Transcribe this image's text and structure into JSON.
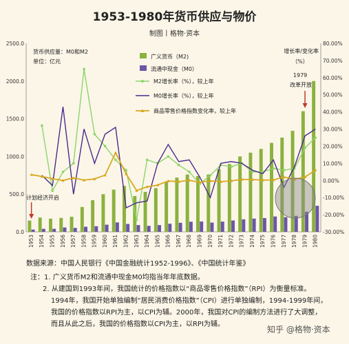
{
  "title": "1953-1980年货币供应与物价",
  "subtitle": "制图丨格物·资本",
  "chart_data": {
    "type": "bar",
    "categories": [
      "1953",
      "1954",
      "1955",
      "1956",
      "1957",
      "1958",
      "1959",
      "1960",
      "1961",
      "1962",
      "1963",
      "1964",
      "1965",
      "1966",
      "1967",
      "1968",
      "1969",
      "1970",
      "1971",
      "1972",
      "1973",
      "1974",
      "1975",
      "1976",
      "1977",
      "1978",
      "1979",
      "1980"
    ],
    "y_left": {
      "range": [
        0,
        2500
      ],
      "ticks": [
        "0.0",
        "500.0",
        "1000.0",
        "1500.0",
        "2000.0",
        "2500.0"
      ]
    },
    "y_right": {
      "range": [
        -30,
        80
      ],
      "ticks": [
        "80.00%",
        "70.00%",
        "60.00%",
        "50.00%",
        "40.00%",
        "30.00%",
        "20.00%",
        "10.00%",
        "0.00%",
        "-10.00%",
        "-20.00%",
        "-30.00%"
      ]
    },
    "series": [
      {
        "name": "广义货币（M2)",
        "type": "bar",
        "axis": "left",
        "color": "#8bb13f",
        "values": [
          150,
          190,
          175,
          185,
          200,
          330,
          420,
          500,
          560,
          610,
          475,
          530,
          580,
          660,
          720,
          760,
          740,
          760,
          830,
          900,
          1000,
          1050,
          1100,
          1180,
          1250,
          1340,
          1600,
          2000
        ]
      },
      {
        "name": "流通中现金（M0）",
        "type": "bar",
        "axis": "left",
        "color": "#6b56a8",
        "values": [
          30,
          40,
          40,
          58,
          52,
          68,
          75,
          95,
          125,
          105,
          90,
          80,
          90,
          108,
          120,
          134,
          137,
          123,
          136,
          151,
          166,
          176,
          183,
          204,
          195,
          212,
          267,
          346
        ]
      },
      {
        "name": "M2增长率（%），较上年",
        "type": "line",
        "axis": "right",
        "color": "#8ed46a",
        "values": [
          null,
          32,
          -6,
          5,
          10,
          65,
          27,
          20,
          12,
          6,
          -23,
          12,
          10,
          14,
          9,
          5,
          -2,
          3,
          9,
          8,
          10,
          5,
          5,
          7,
          6,
          7,
          19,
          25
        ]
      },
      {
        "name": "M0增长率（%），较上年",
        "type": "line",
        "axis": "right",
        "color": "#4a2a8c",
        "values": [
          null,
          3,
          -3,
          43,
          -8,
          30,
          10,
          27,
          31,
          -16,
          -13,
          -12,
          10,
          21,
          11,
          12,
          2,
          -10,
          10,
          11,
          10,
          6,
          4,
          12,
          -4,
          8,
          26,
          30
        ]
      },
      {
        "name": "商品零售价格指数变化率，较上年",
        "type": "line",
        "axis": "right",
        "color": "#d9a820",
        "values": [
          3.4,
          2.3,
          1.0,
          0.0,
          1.5,
          0.2,
          0.9,
          3.1,
          16.2,
          3.8,
          -5.9,
          -3.7,
          -2.7,
          -0.3,
          -0.7,
          0.1,
          -1.1,
          -0.2,
          -0.7,
          -0.2,
          0.6,
          0.5,
          0.2,
          0.3,
          2.0,
          0.7,
          2.0,
          6.0
        ]
      }
    ],
    "annotations": {
      "left_unit_1": "货币供应量：M0和M2",
      "left_unit_2": "单位：亿元",
      "right_label_1": "增长率/变化率",
      "right_label_2": "（%）",
      "year_1979": "1979",
      "reform": "改革开放",
      "planned": "计划经济开启"
    },
    "grid": false,
    "legend_position": "top-center"
  },
  "source": "数据来源：中国人民银行《中国金融统计1952-1996》、《中国统计年鉴》",
  "notes": [
    "注：1. 广义货币M2和流通中现金M0均指当年年底数据。",
    "2. 从建国到1993年间，我国统计的价格指数以“商品零售价格指数”（RPI）为衡量标准。",
    "1994年，我国开始单独编制“居民消费价格指数”（CPI）进行单独编制，1994-1999年间，",
    "我国的价格指数以RPI为主，以CPI为辅。2000年，我国对CPI的编制方法进行了大调整，",
    "而且从此之后，我国的价格指数以CPI为主，以RPI为辅。"
  ],
  "watermark": "知乎 @格物·资本"
}
